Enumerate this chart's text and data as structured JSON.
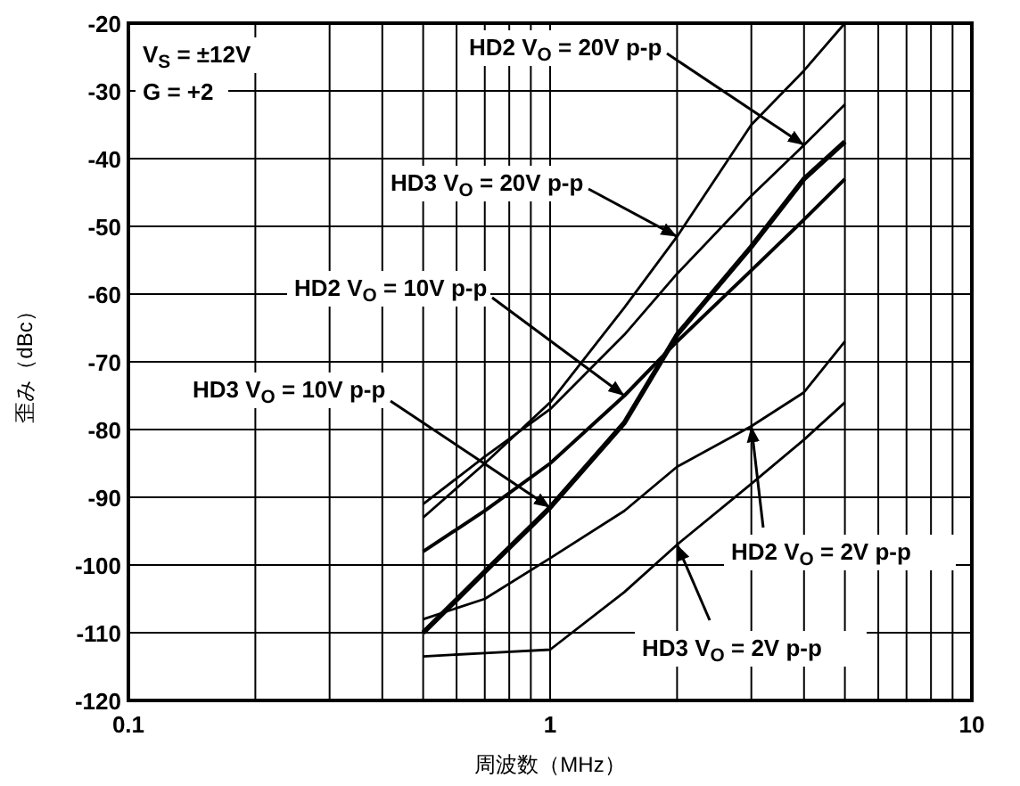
{
  "chart_data": {
    "type": "line",
    "xlabel": "周波数（MHz）",
    "ylabel": "歪み（dBc）",
    "log": "x",
    "grid": true,
    "marker": "none",
    "line_style": "solid",
    "xlim": [
      0.1,
      10
    ],
    "ylim": [
      -120,
      -20
    ],
    "xticks": [
      0.1,
      {
        "value": 0.2,
        "label": null
      },
      {
        "value": 0.3,
        "label": null
      },
      {
        "value": 0.4,
        "label": null
      },
      {
        "value": 0.5,
        "label": null
      },
      {
        "value": 0.6,
        "label": null
      },
      {
        "value": 0.7,
        "label": null
      },
      {
        "value": 0.8,
        "label": null
      },
      {
        "value": 0.9,
        "label": null
      },
      1,
      {
        "value": 2,
        "label": null
      },
      {
        "value": 3,
        "label": null
      },
      {
        "value": 4,
        "label": null
      },
      {
        "value": 5,
        "label": null
      },
      {
        "value": 6,
        "label": null
      },
      {
        "value": 7,
        "label": null
      },
      {
        "value": 8,
        "label": null
      },
      {
        "value": 9,
        "label": null
      },
      10
    ],
    "yticks": [
      -120,
      -110,
      -100,
      -90,
      -80,
      -70,
      -60,
      -50,
      -40,
      -30,
      -20
    ],
    "x": [
      0.5,
      0.7,
      1,
      1.5,
      2,
      3,
      4,
      5
    ],
    "series": [
      {
        "color": "#000000",
        "values": [
          -91,
          -84,
          -77,
          -66,
          -57,
          -45.5,
          -38,
          -32
        ]
      },
      {
        "color": "#000000",
        "values": [
          -93,
          -85,
          -76,
          -62,
          -51.5,
          -35,
          -27,
          -20
        ]
      },
      {
        "color": "#000000",
        "values": [
          -98,
          -92,
          -85,
          -75,
          -67,
          -56.5,
          -49,
          -43
        ]
      },
      {
        "color": "#000000",
        "values": [
          -110,
          -101,
          -91.5,
          -79,
          -66,
          -53,
          -43,
          -37.5
        ]
      },
      {
        "color": "#000000",
        "values": [
          -108,
          -105,
          -99,
          -92,
          -85.5,
          -79.5,
          -74.5,
          -67
        ]
      },
      {
        "color": "#000000",
        "values": [
          -113.5,
          -113,
          -112.5,
          -104,
          -97,
          -88,
          -81.5,
          -76
        ]
      }
    ],
    "annotations": [
      "V$_{S}$ = ±12V",
      "G = +2",
      {
        "text": "HD2 V$_{O}$ = 20V p-p",
        "x": 4,
        "y": -38
      },
      {
        "text": "HD3 V$_{O}$ = 20V p-p",
        "x": 2,
        "y": -51.5
      },
      {
        "text": "HD2 V$_{O}$ = 10V p-p",
        "x": 1.5,
        "y": -75
      },
      {
        "text": "HD3 V$_{O}$ = 10V p-p",
        "x": 1,
        "y": -91.5
      },
      {
        "text": "HD2 V$_{O}$ = 2V p-p",
        "x": 3,
        "y": -79.5
      },
      {
        "text": "HD3 V$_{O}$ = 2V p-p",
        "x": 2,
        "y": -97
      }
    ]
  }
}
